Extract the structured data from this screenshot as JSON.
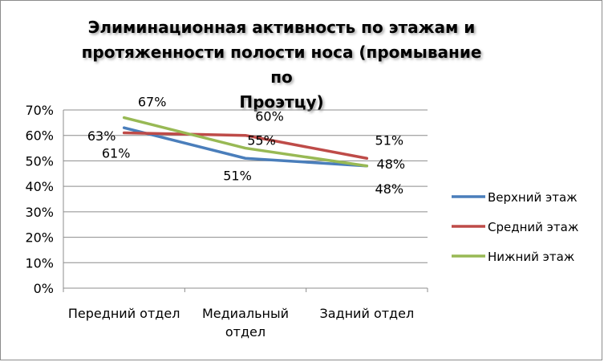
{
  "chart_data": {
    "type": "line",
    "title": "Элиминационная активность по этажам и протяженности полости носа (промывание по Проэтцу)",
    "title_lines": [
      "Элиминационная активность по этажам и",
      "протяженности полости носа (промывание по",
      "Проэтцу)"
    ],
    "categories": [
      [
        "Передний отдел"
      ],
      [
        "Медиальный",
        "отдел"
      ],
      [
        "Задний отдел"
      ]
    ],
    "series": [
      {
        "name": "Верхний этаж",
        "values": [
          63,
          51,
          48
        ],
        "labels": [
          "63%",
          "51%",
          "48%"
        ],
        "color": "#4a7ebb"
      },
      {
        "name": "Средний этаж",
        "values": [
          61,
          60,
          51
        ],
        "labels": [
          "61%",
          "60%",
          "51%"
        ],
        "color": "#be4b48"
      },
      {
        "name": "Нижний этаж",
        "values": [
          67,
          55,
          48
        ],
        "labels": [
          "67%",
          "55%",
          "48%"
        ],
        "color": "#98b954"
      }
    ],
    "ylim": [
      0,
      70
    ],
    "yticks": [
      "0%",
      "10%",
      "20%",
      "30%",
      "40%",
      "50%",
      "60%",
      "70%"
    ],
    "grid": true,
    "legend_position": "right"
  }
}
